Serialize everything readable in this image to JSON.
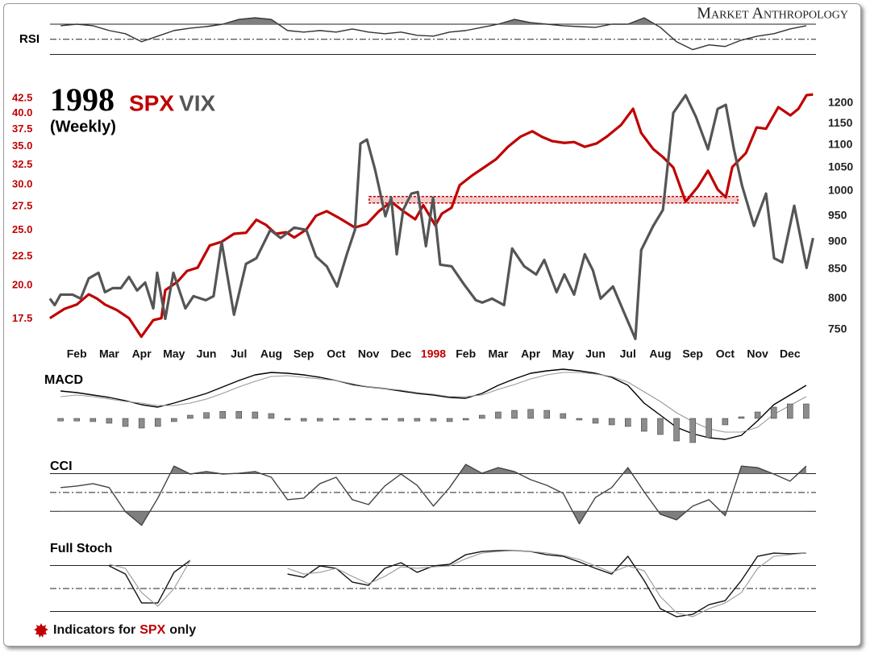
{
  "brand": "Market Anthropology",
  "footer": {
    "parts": [
      "Indicators for",
      "SPX",
      "only"
    ],
    "highlight_color": "#c00000"
  },
  "chart_data": [
    {
      "type": "line",
      "title": "RSI",
      "xlim": [
        0,
        24
      ],
      "ylim": [
        22,
        86
      ],
      "levels": [
        70,
        50,
        30
      ],
      "fill_beyond": true,
      "fill_color": "#7f7f7f",
      "x": [
        0.5,
        1,
        1.5,
        2,
        2.5,
        3,
        3.5,
        4,
        4.5,
        5,
        5.5,
        6,
        6.5,
        7,
        7.5,
        8,
        8.5,
        9,
        9.5,
        10,
        10.5,
        11,
        11.5,
        12,
        12.5,
        13,
        13.5,
        14,
        14.5,
        15,
        15.5,
        16,
        16.5,
        17,
        17.5,
        18,
        18.5,
        19,
        19.5,
        20,
        20.5,
        21,
        21.5,
        22,
        22.5,
        23,
        23.5
      ],
      "series": [
        {
          "color": "#333333",
          "values": [
            67.9,
            70.0,
            67.9,
            61.6,
            57.4,
            46.8,
            54.2,
            61.6,
            64.7,
            66.8,
            70.0,
            76.3,
            78.4,
            76.3,
            61.6,
            59.5,
            61.6,
            59.5,
            63.7,
            59.5,
            57.4,
            59.5,
            55.3,
            54.2,
            59.5,
            61.6,
            65.8,
            70.0,
            76.3,
            72.1,
            70.0,
            67.9,
            66.8,
            65.8,
            70.0,
            70.0,
            78.4,
            65.8,
            46.8,
            36.3,
            42.6,
            40.5,
            48.9,
            54.2,
            57.4,
            63.7,
            67.9
          ]
        }
      ]
    },
    {
      "type": "line",
      "title": "1998",
      "subtitle": "(Weekly)",
      "log": true,
      "xlim": [
        0,
        24
      ],
      "ylim": [
        15.9,
        44.9
      ],
      "ytick_color": "#c00000",
      "yticks": [
        17.5,
        {
          "value": 20,
          "label": "20.0"
        },
        22.5,
        {
          "value": 25,
          "label": "25.0"
        },
        27.5,
        {
          "value": 30,
          "label": "30.0"
        },
        32.5,
        {
          "value": 35,
          "label": "35.0"
        },
        37.5,
        {
          "value": 40,
          "label": "40.0"
        },
        42.5
      ],
      "y2lim": [
        730,
        1247
      ],
      "y2ticks": [
        750,
        800,
        850,
        900,
        950,
        1000,
        1050,
        1100,
        1150,
        1200
      ],
      "xticks": [
        {
          "value": 1,
          "label": "Feb"
        },
        {
          "value": 2,
          "label": "Mar"
        },
        {
          "value": 3,
          "label": "Apr"
        },
        {
          "value": 4,
          "label": "May"
        },
        {
          "value": 5,
          "label": "Jun"
        },
        {
          "value": 6,
          "label": "Jul"
        },
        {
          "value": 7,
          "label": "Aug"
        },
        {
          "value": 8,
          "label": "Sep"
        },
        {
          "value": 9,
          "label": "Oct"
        },
        {
          "value": 10,
          "label": "Nov"
        },
        {
          "value": 11,
          "label": "Dec"
        },
        {
          "value": 12,
          "label": "1998",
          "color": "#c00000"
        },
        {
          "value": 13,
          "label": "Feb"
        },
        {
          "value": 14,
          "label": "Mar"
        },
        {
          "value": 15,
          "label": "Apr"
        },
        {
          "value": 16,
          "label": "May"
        },
        {
          "value": 17,
          "label": "Jun"
        },
        {
          "value": 18,
          "label": "Jul"
        },
        {
          "value": 19,
          "label": "Aug"
        },
        {
          "value": 20,
          "label": "Sep"
        },
        {
          "value": 21,
          "label": "Oct"
        },
        {
          "value": 22,
          "label": "Nov"
        },
        {
          "value": 23,
          "label": "Dec"
        }
      ],
      "reference_band": {
        "value": 982,
        "x": [
          10.02,
          21.39
        ],
        "color": "#c00000"
      },
      "series": [
        {
          "name": "SPX",
          "color": "#c00000",
          "axis": "y2",
          "x": [
            0.17,
            0.62,
            1.0,
            1.37,
            1.62,
            1.87,
            2.24,
            2.61,
            2.99,
            3.36,
            3.61,
            3.73,
            4.1,
            4.4,
            4.73,
            5.1,
            5.47,
            5.85,
            6.22,
            6.54,
            6.84,
            7.14,
            7.46,
            7.71,
            8.08,
            8.38,
            8.71,
            9.08,
            9.58,
            9.95,
            10.32,
            10.7,
            11.07,
            11.44,
            11.69,
            12.06,
            12.26,
            12.56,
            12.81,
            13.18,
            13.56,
            13.93,
            14.3,
            14.68,
            15.05,
            15.35,
            15.67,
            16.04,
            16.34,
            16.67,
            17.04,
            17.34,
            17.79,
            18.16,
            18.41,
            18.78,
            19.08,
            19.4,
            19.78,
            20.15,
            20.47,
            20.77,
            21.02,
            21.22,
            21.64,
            21.97,
            22.26,
            22.64,
            23.01,
            23.26,
            23.51,
            23.71
          ],
          "values": [
            768,
            783,
            790,
            807,
            800,
            790,
            781,
            768,
            739,
            765,
            768,
            814,
            828,
            847,
            853,
            893,
            900,
            915,
            917,
            942,
            932,
            915,
            918,
            908,
            923,
            950,
            959,
            946,
            927,
            934,
            959,
            978,
            959,
            943,
            971,
            931,
            954,
            966,
            1012,
            1032,
            1050,
            1068,
            1096,
            1119,
            1132,
            1119,
            1109,
            1105,
            1107,
            1096,
            1104,
            1119,
            1147,
            1186,
            1128,
            1091,
            1073,
            1050,
            978,
            1008,
            1043,
            1003,
            987,
            1051,
            1082,
            1141,
            1138,
            1190,
            1170,
            1186,
            1220,
            1222
          ]
        },
        {
          "name": "VIX",
          "color": "#555555",
          "x": [
            0.17,
            0.32,
            0.5,
            0.87,
            1.12,
            1.37,
            1.67,
            1.87,
            2.11,
            2.36,
            2.61,
            2.86,
            3.11,
            3.36,
            3.48,
            3.73,
            3.98,
            4.35,
            4.6,
            4.98,
            5.22,
            5.47,
            5.85,
            6.22,
            6.54,
            6.97,
            7.29,
            7.71,
            8.08,
            8.38,
            8.71,
            9.03,
            9.33,
            9.58,
            9.75,
            9.95,
            10.2,
            10.52,
            10.7,
            10.87,
            11.07,
            11.32,
            11.52,
            11.77,
            11.99,
            12.21,
            12.56,
            12.94,
            13.31,
            13.51,
            13.81,
            14.18,
            14.43,
            14.8,
            15.17,
            15.42,
            15.8,
            16.04,
            16.34,
            16.67,
            16.92,
            17.16,
            17.54,
            17.91,
            18.23,
            18.41,
            18.78,
            19.08,
            19.4,
            19.78,
            20.1,
            20.47,
            20.77,
            21.02,
            21.27,
            21.52,
            21.89,
            22.26,
            22.51,
            22.76,
            23.13,
            23.51,
            23.71
          ],
          "values": [
            18.98,
            18.49,
            19.29,
            19.29,
            18.98,
            20.59,
            21.06,
            19.48,
            19.8,
            19.8,
            20.72,
            19.61,
            20.25,
            18.25,
            21.06,
            17.5,
            21.06,
            18.25,
            19.17,
            18.86,
            19.17,
            23.83,
            17.79,
            21.83,
            22.33,
            25.02,
            24.22,
            25.26,
            25.02,
            22.48,
            21.62,
            19.93,
            22.69,
            25.02,
            35.42,
            36.0,
            31.92,
            26.44,
            28.49,
            22.69,
            27.13,
            28.96,
            29.15,
            23.44,
            28.49,
            21.76,
            21.62,
            20.12,
            18.86,
            18.68,
            18.98,
            18.49,
            23.22,
            21.62,
            20.92,
            22.18,
            19.48,
            20.92,
            19.29,
            22.69,
            21.27,
            18.98,
            19.93,
            17.79,
            16.14,
            23.07,
            25.43,
            27.13,
            40.07,
            43.04,
            39.43,
            34.62,
            40.73,
            41.39,
            34.62,
            29.91,
            25.43,
            28.96,
            22.33,
            21.97,
            27.58,
            21.48,
            24.22
          ]
        }
      ]
    },
    {
      "type": "line",
      "title": "MACD",
      "xlim": [
        0,
        24
      ],
      "ylim": [
        -9,
        16
      ],
      "x": [
        0.5,
        1,
        1.5,
        2,
        2.5,
        3,
        3.5,
        4,
        4.5,
        5,
        5.5,
        6,
        6.5,
        7,
        7.5,
        8,
        8.5,
        9,
        9.5,
        10,
        10.5,
        11,
        11.5,
        12,
        12.5,
        13,
        13.5,
        14,
        14.5,
        15,
        15.5,
        16,
        16.5,
        17,
        17.5,
        18,
        18.5,
        19,
        19.5,
        20,
        20.5,
        21,
        21.5,
        22,
        22.5,
        23,
        23.5
      ],
      "series": [
        {
          "color": "#000000",
          "values": [
            8.5,
            8,
            7.25,
            6.5,
            5.5,
            4.25,
            3.5,
            4.75,
            6.25,
            7.75,
            9.75,
            11.75,
            13.5,
            14.25,
            14,
            13.5,
            12.75,
            11.75,
            10.5,
            9.75,
            9.25,
            8.5,
            7.75,
            7.25,
            6.5,
            6.25,
            7.75,
            10.25,
            12.25,
            14,
            14.75,
            15.25,
            14.75,
            14,
            12.75,
            10.25,
            4.75,
            1,
            -2.75,
            -4.75,
            -6,
            -6.5,
            -5.25,
            -0.75,
            4.25,
            7.25,
            10.25
          ]
        },
        {
          "color": "#999999",
          "values": [
            6.75,
            7.25,
            6.75,
            6,
            5.25,
            4.75,
            4,
            4,
            4.75,
            6,
            7.75,
            9.75,
            11.5,
            13,
            13.25,
            12.75,
            12.25,
            11.75,
            10.75,
            9.75,
            9.25,
            8.75,
            8,
            7.5,
            6.75,
            6.75,
            7.25,
            9,
            10.5,
            12.25,
            13.5,
            14.25,
            14.25,
            13.75,
            13,
            11.25,
            8.25,
            5.25,
            1.75,
            -1,
            -3.25,
            -4.25,
            -4.25,
            -2.75,
            1.25,
            4,
            6.75
          ]
        },
        {
          "type": "bar",
          "color": "#8c8c8c",
          "values": [
            -0.8,
            -0.8,
            -1,
            -1.5,
            -2.5,
            -3,
            -2.5,
            -1,
            1,
            1.8,
            2.2,
            2.2,
            2,
            1.5,
            -0.5,
            -0.8,
            -0.8,
            -0.5,
            -0.5,
            -0.5,
            -0.5,
            -0.8,
            -0.8,
            -0.8,
            -1,
            -0.5,
            1,
            2,
            2.5,
            2.8,
            2.5,
            1.5,
            -0.5,
            -1.5,
            -2,
            -2.5,
            -4,
            -5,
            -7,
            -7.5,
            -6,
            -2,
            0.5,
            2,
            3.5,
            4.5,
            4.5
          ]
        }
      ]
    },
    {
      "type": "line",
      "title": "CCI",
      "xlim": [
        0,
        24
      ],
      "ylim": [
        -210,
        175
      ],
      "levels": [
        100,
        0,
        -100
      ],
      "fill_beyond": true,
      "fill_color": "#7f7f7f",
      "x": [
        0.5,
        1,
        1.5,
        2,
        2.5,
        3,
        3.5,
        4,
        4.5,
        5,
        5.5,
        6,
        6.5,
        7,
        7.5,
        8,
        8.5,
        9,
        9.5,
        10,
        10.5,
        11,
        11.5,
        12,
        12.5,
        13,
        13.5,
        14,
        14.5,
        15,
        15.5,
        16,
        16.5,
        17,
        17.5,
        18,
        18.5,
        19,
        19.5,
        20,
        20.5,
        21,
        21.5,
        22,
        22.5,
        23,
        23.5
      ],
      "series": [
        {
          "color": "#444444",
          "values": [
            26,
            34,
            47,
            26,
            -102,
            -174,
            -30,
            140,
            98,
            111,
            98,
            102,
            111,
            81,
            -38,
            -30,
            47,
            81,
            -38,
            -64,
            34,
            98,
            38,
            -72,
            26,
            149,
            102,
            132,
            111,
            68,
            38,
            -4,
            -166,
            -26,
            26,
            132,
            4,
            -115,
            -145,
            -72,
            -38,
            -123,
            140,
            132,
            98,
            60,
            140
          ]
        }
      ]
    },
    {
      "type": "line",
      "title": "Full Stoch",
      "xlim": [
        0,
        24
      ],
      "ylim": [
        0,
        100
      ],
      "levels": [
        80,
        50,
        20
      ],
      "x": [
        0.5,
        1,
        1.5,
        2,
        2.5,
        3,
        3.5,
        4,
        4.5,
        5,
        5.5,
        6,
        6.5,
        7,
        7.5,
        8,
        8.5,
        9,
        9.5,
        10,
        10.5,
        11,
        11.5,
        12,
        12.5,
        13,
        13.5,
        14,
        14.5,
        15,
        15.5,
        16,
        16.5,
        17,
        17.5,
        18,
        18.5,
        19,
        19.5,
        20,
        20.5,
        21,
        21.5,
        22,
        22.5,
        23,
        23.5
      ],
      "series": [
        {
          "color": "#111111",
          "values": [
            null,
            null,
            null,
            79.5,
            68.9,
            31.1,
            31.1,
            71.1,
            86.8,
            null,
            null,
            null,
            null,
            null,
            68.9,
            64.7,
            79.5,
            76.3,
            58.4,
            54.2,
            76.3,
            83.7,
            71.1,
            79.5,
            81.6,
            94.2,
            98.4,
            99.5,
            99.5,
            98.4,
            94.2,
            92.1,
            84.7,
            76.3,
            68.9,
            92.1,
            60.5,
            23.7,
            13.2,
            16.3,
            28.9,
            34.2,
            60.5,
            92.1,
            96.3,
            95.3,
            96.3
          ]
        },
        {
          "color": "#999999",
          "values": [
            null,
            null,
            null,
            81.6,
            76.3,
            44.7,
            26.8,
            50,
            86.8,
            null,
            null,
            null,
            null,
            null,
            76.3,
            68.9,
            71.1,
            76.3,
            65.8,
            56.3,
            65.8,
            78.4,
            76.3,
            78.4,
            79.5,
            88.9,
            96.3,
            98.4,
            99.5,
            98.4,
            96.3,
            93.2,
            87.9,
            79.5,
            71.1,
            79.5,
            73.2,
            39.5,
            18.4,
            13.2,
            23.7,
            31.1,
            44.7,
            76.3,
            92.1,
            94.2,
            96.3
          ]
        }
      ]
    }
  ]
}
